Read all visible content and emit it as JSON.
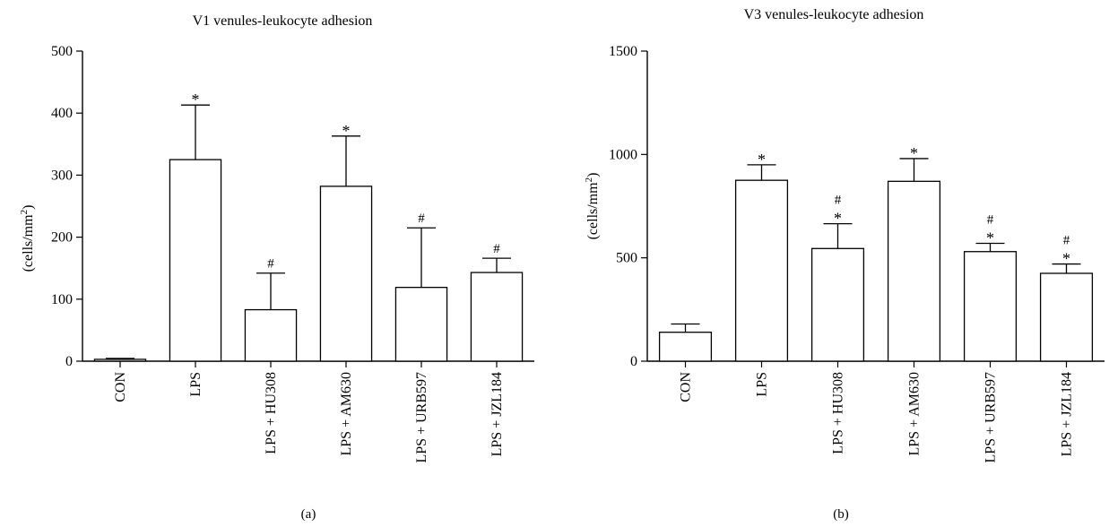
{
  "charts": [
    {
      "type": "bar",
      "title": "V1 venules-leukocyte adhesion",
      "ylabel_main": "(cells/mm",
      "ylabel_sup": "2",
      "ylabel_close": ")",
      "panel_label": "(a)",
      "ylim": [
        0,
        500
      ],
      "yticks": [
        "0",
        "100",
        "200",
        "300",
        "400",
        "500"
      ],
      "categories": [
        "CON",
        "LPS",
        "LPS + HU308",
        "LPS + AM630",
        "LPS + URB597",
        "LPS + JZL184"
      ],
      "values": [
        3,
        325,
        83,
        282,
        119,
        143
      ],
      "errors": [
        1.5,
        88,
        59,
        81,
        96,
        23
      ],
      "annotations": [
        [],
        [
          "*"
        ],
        [
          "#"
        ],
        [
          "*"
        ],
        [
          "#"
        ],
        [
          "#"
        ]
      ]
    },
    {
      "type": "bar",
      "title": "V3 venules-leukocyte adhesion",
      "ylabel_main": "(cells/mm",
      "ylabel_sup": "2",
      "ylabel_close": ")",
      "panel_label": "(b)",
      "ylim": [
        0,
        1500
      ],
      "yticks": [
        "0",
        "500",
        "1000",
        "1500"
      ],
      "categories": [
        "CON",
        "LPS",
        "LPS + HU308",
        "LPS + AM630",
        "LPS + URB597",
        "LPS + JZL184"
      ],
      "values": [
        140,
        875,
        545,
        870,
        530,
        425
      ],
      "errors": [
        40,
        75,
        120,
        110,
        40,
        45
      ],
      "annotations": [
        [],
        [
          "*"
        ],
        [
          "#",
          "*"
        ],
        [
          "*"
        ],
        [
          "#",
          "*"
        ],
        [
          "#",
          "*"
        ]
      ]
    }
  ]
}
